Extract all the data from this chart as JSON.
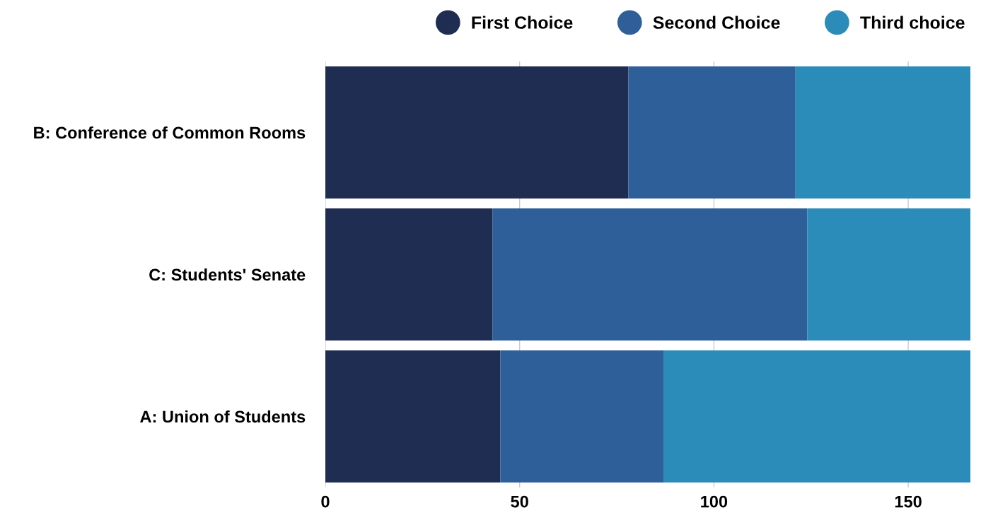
{
  "chart_data": {
    "type": "bar",
    "orientation": "horizontal",
    "stacked": true,
    "categories": [
      "B: Conference of Common Rooms",
      "C: Students' Senate",
      "A: Union of Students"
    ],
    "series": [
      {
        "name": "First Choice",
        "color": "#202d52",
        "values": [
          78,
          43,
          45
        ]
      },
      {
        "name": "Second Choice",
        "color": "#2e5f98",
        "values": [
          43,
          81,
          42
        ]
      },
      {
        "name": "Third choice",
        "color": "#2b8bb9",
        "values": [
          45,
          42,
          79
        ]
      }
    ],
    "xlim": [
      0,
      166
    ],
    "xticks": [
      0,
      50,
      100,
      150
    ],
    "grid": "x",
    "legend": "top right"
  }
}
